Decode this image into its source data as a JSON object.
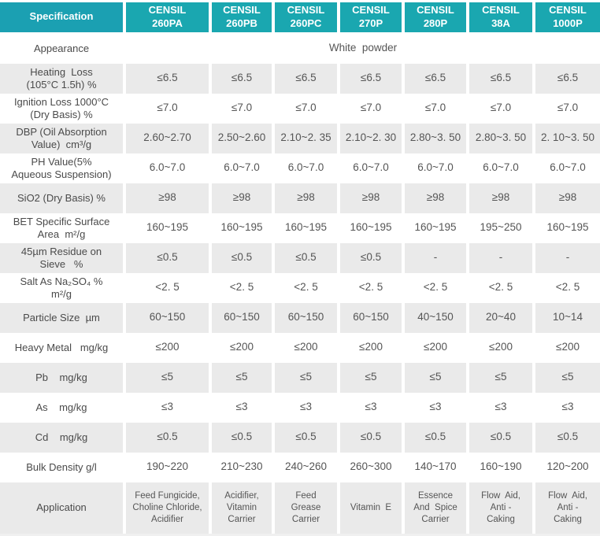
{
  "colors": {
    "header_teal": "#1aa7b0",
    "spec_header_teal": "#1ba0b2",
    "shaded_row_gray": "#eaeaea",
    "header_text": "#ffffff",
    "body_text": "#4a4a4a"
  },
  "table": {
    "columns": [
      "Specification",
      "CENSIL\n260PA",
      "CENSIL\n260PB",
      "CENSIL\n260PC",
      "CENSIL\n270P",
      "CENSIL\n280P",
      "CENSIL\n38A",
      "CENSIL\n1000P"
    ],
    "appearance_row": {
      "label": "Appearance",
      "value": "White  powder"
    },
    "rows": [
      {
        "id": "heating-loss",
        "label": "Heating  Loss\n(105°C 1.5h) %",
        "values": [
          "≤6.5",
          "≤6.5",
          "≤6.5",
          "≤6.5",
          "≤6.5",
          "≤6.5",
          "≤6.5"
        ]
      },
      {
        "id": "ignition-loss",
        "label": "Ignition Loss 1000°C\n(Dry Basis) %",
        "values": [
          "≤7.0",
          "≤7.0",
          "≤7.0",
          "≤7.0",
          "≤7.0",
          "≤7.0",
          "≤7.0"
        ]
      },
      {
        "id": "dbp-oil-absorption",
        "label": "DBP (Oil Absorption\nValue)  cm³/g",
        "values": [
          "2.60~2.70",
          "2.50~2.60",
          "2.10~2. 35",
          "2.10~2. 30",
          "2.80~3. 50",
          "2.80~3. 50",
          "2. 10~3. 50"
        ]
      },
      {
        "id": "ph-value",
        "label": "PH Value(5%\nAqueous Suspension)",
        "values": [
          "6.0~7.0",
          "6.0~7.0",
          "6.0~7.0",
          "6.0~7.0",
          "6.0~7.0",
          "6.0~7.0",
          "6.0~7.0"
        ]
      },
      {
        "id": "sio2",
        "label": "SiO2 (Dry Basis) %",
        "values": [
          "≥98",
          "≥98",
          "≥98",
          "≥98",
          "≥98",
          "≥98",
          "≥98"
        ]
      },
      {
        "id": "bet-surface-area",
        "label": "BET Specific Surface\nArea  m²/g",
        "values": [
          "160~195",
          "160~195",
          "160~195",
          "160~195",
          "160~195",
          "195~250",
          "160~195"
        ]
      },
      {
        "id": "residue-on-sieve",
        "label": "45µm Residue on\nSieve   %",
        "values": [
          "≤0.5",
          "≤0.5",
          "≤0.5",
          "≤0.5",
          "-",
          "-",
          "-"
        ]
      },
      {
        "id": "salt-as-na2so4",
        "label": "Salt As Na₂SO₄ %\nm²/g",
        "values": [
          "<2. 5",
          "<2. 5",
          "<2. 5",
          "<2. 5",
          "<2. 5",
          "<2. 5",
          "<2. 5"
        ]
      },
      {
        "id": "particle-size",
        "label": "Particle Size  µm",
        "values": [
          "60~150",
          "60~150",
          "60~150",
          "60~150",
          "40~150",
          "20~40",
          "10~14"
        ]
      },
      {
        "id": "heavy-metal",
        "label": "Heavy Metal   mg/kg",
        "values": [
          "≤200",
          "≤200",
          "≤200",
          "≤200",
          "≤200",
          "≤200",
          "≤200"
        ]
      },
      {
        "id": "pb",
        "label": "Pb    mg/kg",
        "values": [
          "≤5",
          "≤5",
          "≤5",
          "≤5",
          "≤5",
          "≤5",
          "≤5"
        ]
      },
      {
        "id": "as",
        "label": "As    mg/kg",
        "values": [
          "≤3",
          "≤3",
          "≤3",
          "≤3",
          "≤3",
          "≤3",
          "≤3"
        ]
      },
      {
        "id": "cd",
        "label": "Cd    mg/kg",
        "values": [
          "≤0.5",
          "≤0.5",
          "≤0.5",
          "≤0.5",
          "≤0.5",
          "≤0.5",
          "≤0.5"
        ]
      },
      {
        "id": "bulk-density",
        "label": "Bulk Density g/l",
        "values": [
          "190~220",
          "210~230",
          "240~260",
          "260~300",
          "140~170",
          "160~190",
          "120~200"
        ]
      },
      {
        "id": "application",
        "label": "Application",
        "values": [
          "Feed Fungicide,\nCholine Chloride,\nAcidifier",
          "Acidifier,\nVitamin\nCarrier",
          "Feed\nGrease\nCarrier",
          "Vitamin  E",
          "Essence\nAnd  Spice\nCarrier",
          "Flow  Aid,\nAnti -\nCaking",
          "Flow  Aid,\nAnti -\nCaking"
        ]
      }
    ]
  }
}
